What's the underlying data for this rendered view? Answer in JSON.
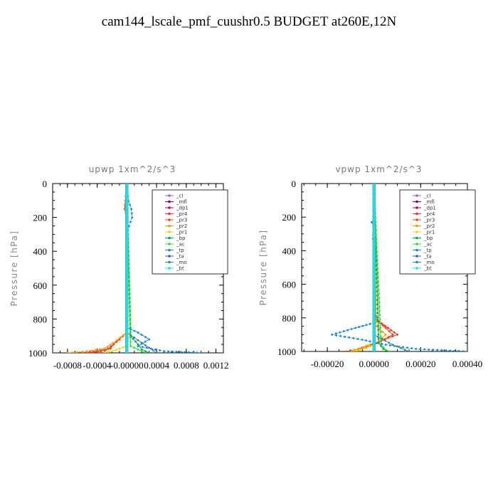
{
  "figure_title": "cam144_lscale_pmf_cuushr0.5  BUDGET at260E,12N",
  "chart_data": [
    {
      "type": "line",
      "title": "upwp   1xm^2/s^3",
      "ylabel": "Pressure  [hPa]",
      "xlabel": "",
      "xlim": [
        -0.001,
        0.0013
      ],
      "ylim": [
        1000,
        0
      ],
      "xticks": [
        -0.0008,
        -0.0004,
        0.0,
        0.0004,
        0.0008,
        0.0012
      ],
      "xtick_labels": [
        "-0.0008",
        "-0.0004",
        "-0.00000",
        "0.0004",
        "0.0008",
        "0.0012"
      ],
      "yticks": [
        0,
        200,
        400,
        600,
        800,
        1000
      ],
      "ytick_labels": [
        "0",
        "200",
        "400",
        "600",
        "800",
        "1000"
      ],
      "legend_position": "top-right",
      "series": [
        {
          "name": "_cl",
          "color": "#9966cc",
          "y": [
            0,
            1000
          ],
          "x": [
            0,
            0
          ]
        },
        {
          "name": "_mfl",
          "color": "#800060",
          "y": [
            0,
            1000
          ],
          "x": [
            0,
            0
          ]
        },
        {
          "name": "_dp1",
          "color": "#cc0033",
          "y": [
            0,
            1000
          ],
          "x": [
            0,
            0
          ]
        },
        {
          "name": "_pr4",
          "color": "#ee3333",
          "y": [
            0,
            150,
            200,
            880,
            920,
            950,
            975,
            990,
            1000
          ],
          "x": [
            0,
            -3e-05,
            0,
            0,
            -0.0001,
            -0.00018,
            -0.00025,
            -0.0004,
            -0.00055
          ]
        },
        {
          "name": "_pr3",
          "color": "#ff4400",
          "y": [
            0,
            880,
            920,
            950,
            975,
            990,
            1000
          ],
          "x": [
            0,
            0,
            -0.0001,
            -0.00018,
            -0.00022,
            -0.00035,
            -0.0005
          ]
        },
        {
          "name": "_pr2",
          "color": "#ff9900",
          "y": [
            0,
            150,
            220,
            880,
            940,
            975,
            995,
            1000
          ],
          "x": [
            0,
            -2e-05,
            0,
            0,
            -0.00018,
            -0.0003,
            -0.0006,
            -0.0008
          ]
        },
        {
          "name": "_pr1",
          "color": "#dddd00",
          "y": [
            0,
            960,
            990,
            1000
          ],
          "x": [
            0,
            0,
            -0.0002,
            -0.0003
          ]
        },
        {
          "name": "_bp",
          "color": "#00aa55",
          "y": [
            0,
            900,
            950,
            980,
            1000
          ],
          "x": [
            0,
            5e-05,
            0.00015,
            0.0002,
            0.0003
          ]
        },
        {
          "name": "_ac",
          "color": "#33dd33",
          "y": [
            0,
            960,
            990,
            1000
          ],
          "x": [
            0,
            5e-05,
            0.0002,
            0.00025
          ]
        },
        {
          "name": "_tp",
          "color": "#1188dd",
          "y": [
            0,
            100,
            150,
            200,
            250,
            300,
            850,
            880,
            920,
            960,
            990,
            1000
          ],
          "x": [
            0,
            2e-05,
            6e-05,
            7e-05,
            3e-05,
            0,
            0,
            0.00015,
            0.0003,
            0.00015,
            0.0005,
            0.001
          ]
        },
        {
          "name": "_ta",
          "color": "#3355dd",
          "y": [
            0,
            1000
          ],
          "x": [
            0,
            0
          ]
        },
        {
          "name": "_mo",
          "color": "#338899",
          "y": [
            0,
            880,
            940,
            1000
          ],
          "x": [
            0,
            0,
            0.0002,
            0.0004
          ]
        },
        {
          "name": "_bt",
          "color": "#22dddd",
          "y": [
            0,
            1000
          ],
          "x": [
            0,
            0
          ]
        }
      ]
    },
    {
      "type": "line",
      "title": "vpwp   1xm^2/s^3",
      "ylabel": "Pressure  [hPa]",
      "xlabel": "",
      "xlim": [
        -0.00031,
        0.0004
      ],
      "ylim": [
        1000,
        0
      ],
      "xticks": [
        -0.0002,
        0.0,
        0.0002,
        0.0004
      ],
      "xtick_labels": [
        "-0.00020",
        "0.00000",
        "0.00020",
        "0.00040"
      ],
      "yticks": [
        0,
        200,
        400,
        600,
        800,
        1000
      ],
      "ytick_labels": [
        "0",
        "200",
        "400",
        "600",
        "800",
        "1000"
      ],
      "legend_position": "top-right",
      "series": [
        {
          "name": "_cl",
          "color": "#9966cc",
          "y": [
            0,
            1000
          ],
          "x": [
            0,
            0
          ]
        },
        {
          "name": "_mfl",
          "color": "#800060",
          "y": [
            0,
            1000
          ],
          "x": [
            0,
            0
          ]
        },
        {
          "name": "_dp1",
          "color": "#cc0033",
          "y": [
            0,
            1000
          ],
          "x": [
            0,
            0
          ]
        },
        {
          "name": "_pr4",
          "color": "#ee3333",
          "y": [
            0,
            780,
            820,
            860,
            900,
            930,
            960,
            985,
            1000
          ],
          "x": [
            0,
            0,
            2e-05,
            6e-05,
            0.0001,
            4e-05,
            0,
            -5e-05,
            -0.00012
          ]
        },
        {
          "name": "_pr3",
          "color": "#ff4400",
          "y": [
            0,
            800,
            860,
            900,
            940,
            970,
            1000
          ],
          "x": [
            0,
            0,
            5e-05,
            8e-05,
            3e-05,
            -3e-05,
            -0.0001
          ]
        },
        {
          "name": "_pr2",
          "color": "#ff9900",
          "y": [
            0,
            850,
            900,
            940,
            975,
            1000
          ],
          "x": [
            0,
            1e-05,
            5e-05,
            2e-05,
            -5e-05,
            -0.0001
          ]
        },
        {
          "name": "_pr1",
          "color": "#dddd00",
          "y": [
            0,
            960,
            990,
            1000
          ],
          "x": [
            0,
            0,
            -6e-05,
            -9e-05
          ]
        },
        {
          "name": "_bp",
          "color": "#00aa55",
          "y": [
            0,
            950,
            985,
            1000
          ],
          "x": [
            0,
            2e-05,
            4e-05,
            6e-05
          ]
        },
        {
          "name": "_ac",
          "color": "#33dd33",
          "y": [
            0,
            960,
            990,
            1000
          ],
          "x": [
            0,
            3e-05,
            5e-05,
            7e-05
          ]
        },
        {
          "name": "_tp",
          "color": "#1188dd",
          "y": [
            0,
            200,
            230,
            260,
            330,
            380,
            460,
            480,
            760,
            790,
            830,
            860,
            900,
            930,
            960,
            985,
            1000
          ],
          "x": [
            0,
            0,
            -1e-05,
            0,
            -5e-06,
            0,
            8e-06,
            0,
            0,
            8e-06,
            0,
            -8e-05,
            -0.00018,
            -5e-05,
            5e-05,
            0.00018,
            0.0004
          ]
        },
        {
          "name": "_ta",
          "color": "#3355dd",
          "y": [
            0,
            1000
          ],
          "x": [
            0,
            0
          ]
        },
        {
          "name": "_mo",
          "color": "#338899",
          "y": [
            0,
            900,
            960,
            1000
          ],
          "x": [
            0,
            0,
            8e-05,
            0.00015
          ]
        },
        {
          "name": "_bt",
          "color": "#22dddd",
          "y": [
            0,
            1000
          ],
          "x": [
            0,
            0
          ]
        }
      ]
    }
  ]
}
